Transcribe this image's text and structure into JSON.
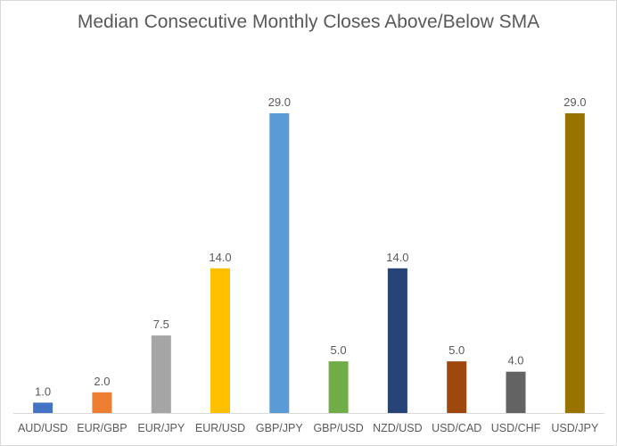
{
  "chart_data": {
    "type": "bar",
    "title": "Median Consecutive Monthly Closes Above/Below SMA",
    "xlabel": "",
    "ylabel": "",
    "categories": [
      "AUD/USD",
      "EUR/GBP",
      "EUR/JPY",
      "EUR/USD",
      "GBP/JPY",
      "GBP/USD",
      "NZD/USD",
      "USD/CAD",
      "USD/CHF",
      "USD/JPY"
    ],
    "values": [
      1.0,
      2.0,
      7.5,
      14.0,
      29.0,
      5.0,
      14.0,
      5.0,
      4.0,
      29.0
    ],
    "data_labels": [
      "1.0",
      "2.0",
      "7.5",
      "14.0",
      "29.0",
      "5.0",
      "14.0",
      "5.0",
      "4.0",
      "29.0"
    ],
    "colors": [
      "#4472c4",
      "#ed7d31",
      "#a5a5a5",
      "#ffc000",
      "#5b9bd5",
      "#70ad47",
      "#264478",
      "#9e480e",
      "#636363",
      "#997300"
    ],
    "ylim": [
      0,
      29
    ],
    "grid": false,
    "legend": "none"
  }
}
